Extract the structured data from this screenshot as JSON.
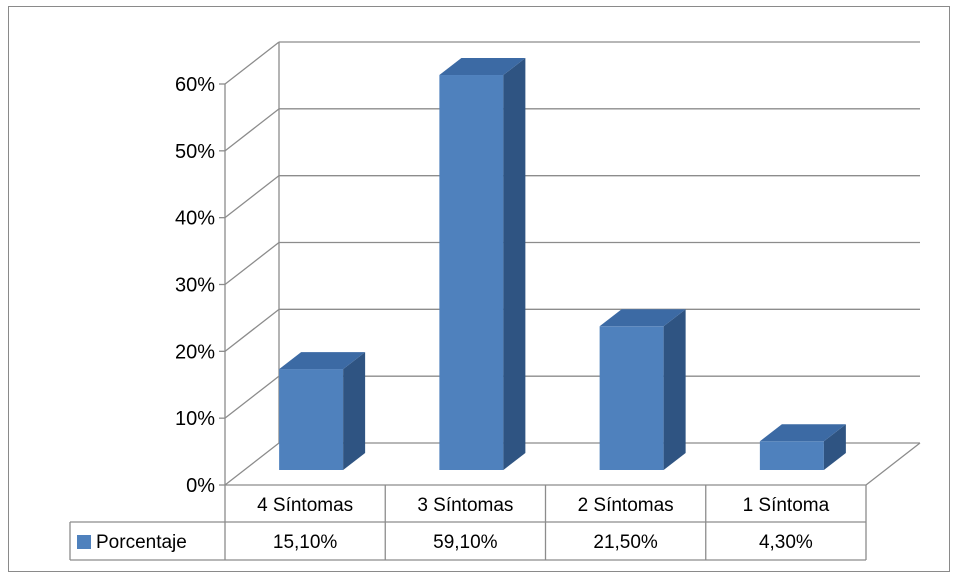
{
  "chart_data": {
    "type": "bar",
    "style": "3d-column",
    "categories": [
      "4 Síntomas",
      "3 Síntomas",
      "2 Síntomas",
      "1 Síntoma"
    ],
    "series": [
      {
        "name": "Porcentaje",
        "values": [
          15.1,
          59.1,
          21.5,
          4.3
        ],
        "value_labels": [
          "15,10%",
          "59,10%",
          "21,50%",
          "4,30%"
        ],
        "color": "#4f81bd"
      }
    ],
    "yticks": [
      "0%",
      "10%",
      "20%",
      "30%",
      "40%",
      "50%",
      "60%"
    ],
    "ylim": [
      0,
      60
    ],
    "grid": true,
    "legend": "data-table"
  }
}
